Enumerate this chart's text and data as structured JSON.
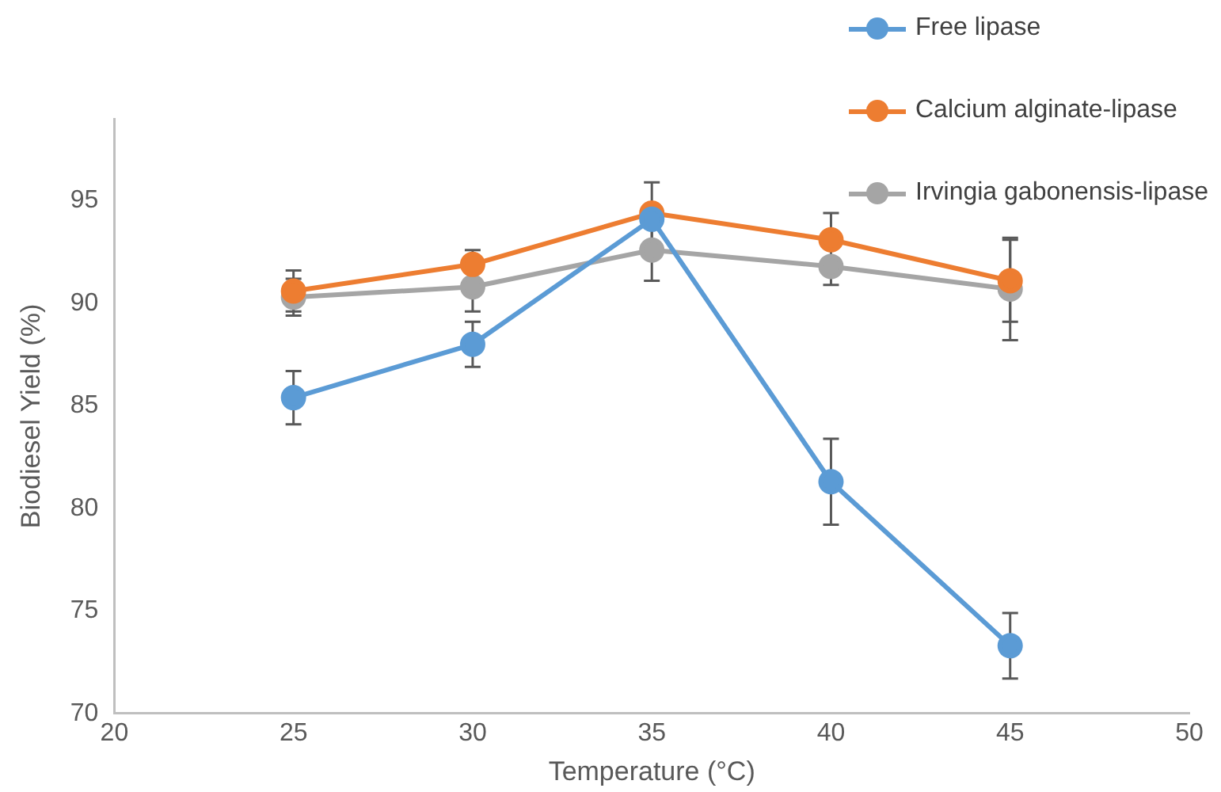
{
  "chart_data": {
    "type": "line",
    "xlabel": "Temperature (°C)",
    "ylabel": "Biodiesel Yield (%)",
    "x": [
      25,
      30,
      35,
      40,
      45
    ],
    "series": [
      {
        "name": "Free lipase",
        "color": "#5b9bd5",
        "values": [
          85.4,
          88.0,
          94.1,
          81.3,
          73.3
        ],
        "errors": [
          1.3,
          1.1,
          null,
          2.1,
          1.6
        ]
      },
      {
        "name": "Calcium alginate-lipase",
        "color": "#ed7d31",
        "values": [
          90.6,
          91.9,
          94.4,
          93.1,
          91.1
        ],
        "errors": [
          1.0,
          0.7,
          1.5,
          1.3,
          2.0
        ]
      },
      {
        "name": "Irvingia gabonensis-lipase",
        "color": "#a5a5a5",
        "values": [
          90.3,
          90.8,
          92.6,
          91.8,
          90.7
        ],
        "errors": [
          0.9,
          1.2,
          1.5,
          0.9,
          2.5
        ]
      }
    ],
    "xlim": [
      20,
      50
    ],
    "xticks": [
      20,
      25,
      30,
      35,
      40,
      45,
      50
    ],
    "ylim": [
      70,
      99
    ],
    "yticks": [
      70,
      75,
      80,
      85,
      90,
      95
    ],
    "grid": false,
    "legend": "top right",
    "marker": "circle",
    "line_style": "solid"
  }
}
